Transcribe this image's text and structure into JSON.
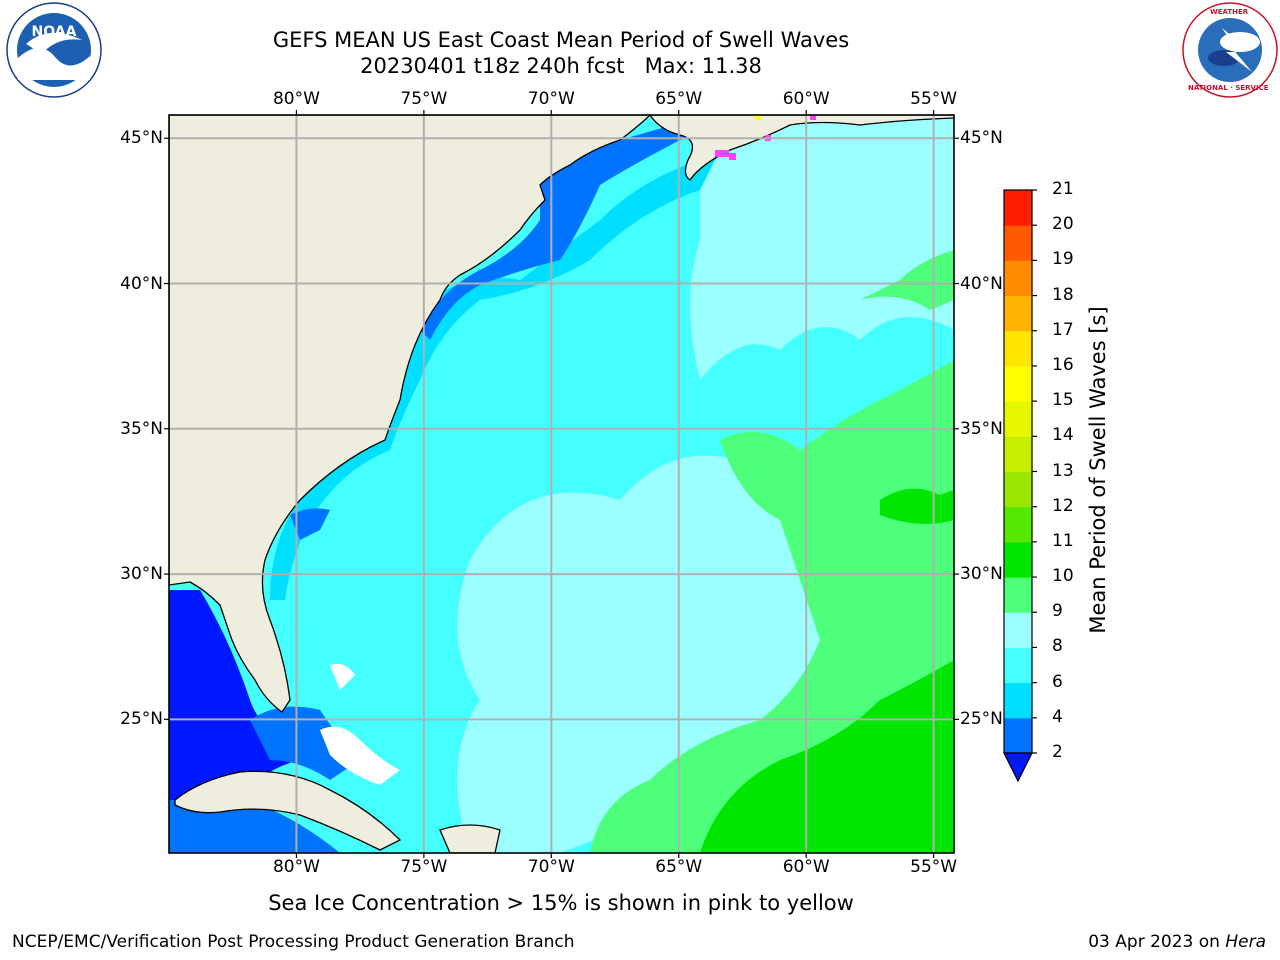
{
  "header": {
    "title_line1": "GEFS MEAN US East Coast Mean Period of Swell Waves",
    "title_line2": "20230401 t18z 240h fcst   Max: 11.38"
  },
  "logos": {
    "left": "NOAA",
    "left_ring_text": "NATIONAL OCEANIC AND ATMOSPHERIC ADMINISTRATION · U.S. DEPARTMENT OF COMMERCE",
    "right_ring_text": "NATIONAL WEATHER SERVICE"
  },
  "axes": {
    "lon_ticks": [
      "80°W",
      "75°W",
      "70°W",
      "65°W",
      "60°W",
      "55°W"
    ],
    "lat_ticks": [
      "45°N",
      "40°N",
      "35°N",
      "30°N",
      "25°N"
    ],
    "lon_values": [
      -80,
      -75,
      -70,
      -65,
      -60,
      -55
    ],
    "lat_values": [
      45,
      40,
      35,
      30,
      25
    ],
    "lon_range": [
      -85,
      -54.2
    ],
    "lat_range": [
      20.4,
      45.8
    ],
    "grid": true
  },
  "colorbar": {
    "label": "Mean Period of Swell Waves [s]",
    "ticks": [
      "2",
      "4",
      "6",
      "8",
      "9",
      "10",
      "11",
      "12",
      "13",
      "14",
      "15",
      "16",
      "17",
      "18",
      "19",
      "20",
      "21"
    ],
    "colors": [
      "#0073ff",
      "#00dfff",
      "#45ffff",
      "#9cffff",
      "#4dff7a",
      "#00e600",
      "#56e800",
      "#9ae600",
      "#c6ef00",
      "#e6f700",
      "#ffff00",
      "#ffe600",
      "#ffb400",
      "#ff8c00",
      "#ff5a00",
      "#ff1e00"
    ],
    "under_color": "#0018ff",
    "extend": "min"
  },
  "map_colors": {
    "land": "#eeedde",
    "coast": "#000000",
    "grid": "#b0b0b0",
    "sea_ice_colors": [
      "#ff40ff",
      "#ffff00"
    ]
  },
  "caption": "Sea Ice Concentration > 15% is shown in pink to yellow",
  "footer": {
    "left": "NCEP/EMC/Verification Post Processing Product Generation Branch",
    "date": "03 Apr 2023 on ",
    "host": "Hera"
  }
}
